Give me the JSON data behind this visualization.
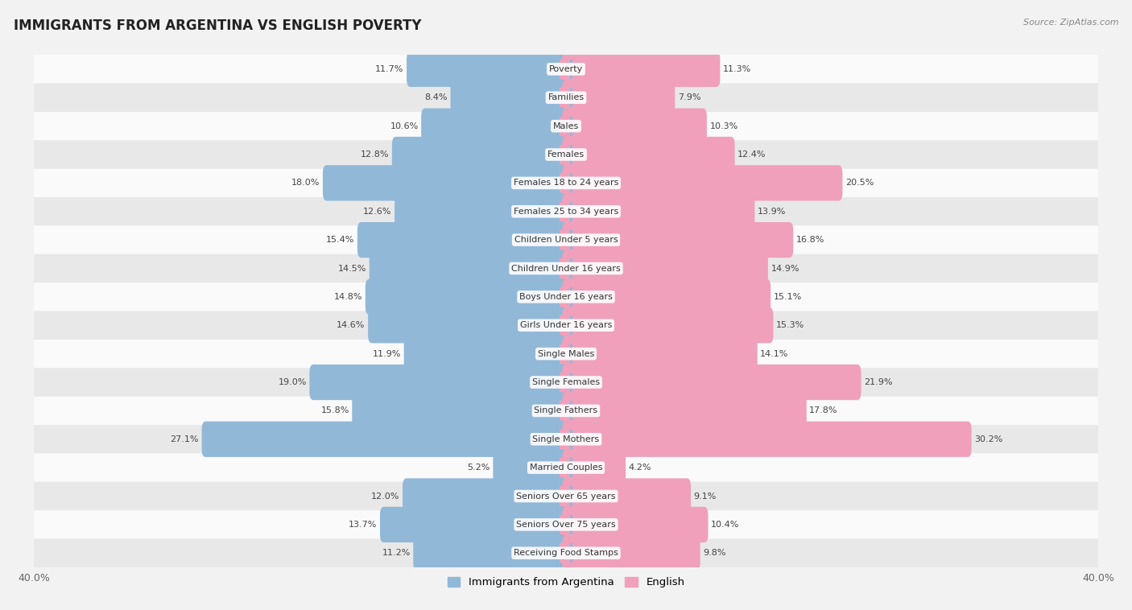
{
  "title": "IMMIGRANTS FROM ARGENTINA VS ENGLISH POVERTY",
  "source": "Source: ZipAtlas.com",
  "categories": [
    "Poverty",
    "Families",
    "Males",
    "Females",
    "Females 18 to 24 years",
    "Females 25 to 34 years",
    "Children Under 5 years",
    "Children Under 16 years",
    "Boys Under 16 years",
    "Girls Under 16 years",
    "Single Males",
    "Single Females",
    "Single Fathers",
    "Single Mothers",
    "Married Couples",
    "Seniors Over 65 years",
    "Seniors Over 75 years",
    "Receiving Food Stamps"
  ],
  "argentina_values": [
    11.7,
    8.4,
    10.6,
    12.8,
    18.0,
    12.6,
    15.4,
    14.5,
    14.8,
    14.6,
    11.9,
    19.0,
    15.8,
    27.1,
    5.2,
    12.0,
    13.7,
    11.2
  ],
  "english_values": [
    11.3,
    7.9,
    10.3,
    12.4,
    20.5,
    13.9,
    16.8,
    14.9,
    15.1,
    15.3,
    14.1,
    21.9,
    17.8,
    30.2,
    4.2,
    9.1,
    10.4,
    9.8
  ],
  "argentina_color": "#92b8d8",
  "english_color": "#f0a0bb",
  "bg_color": "#f2f2f2",
  "row_bg_light": "#fafafa",
  "row_bg_dark": "#e8e8e8",
  "axis_limit": 40.0,
  "bar_height": 0.68,
  "legend_labels": [
    "Immigrants from Argentina",
    "English"
  ],
  "title_fontsize": 12,
  "label_fontsize": 8.0,
  "value_fontsize": 8.0
}
